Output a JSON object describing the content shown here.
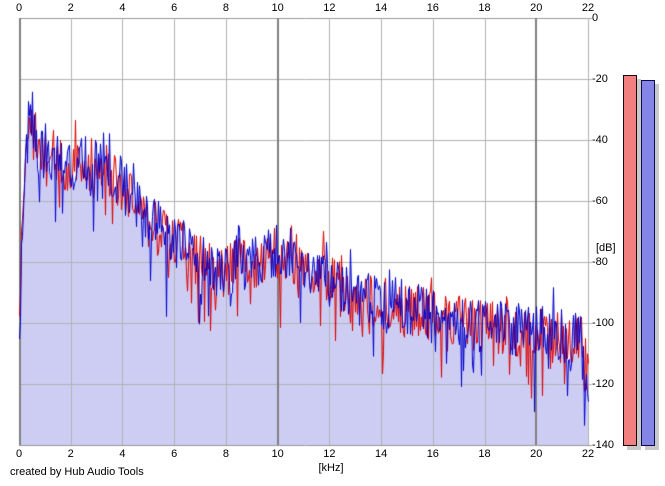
{
  "credit_label": "created by Hub Audio Tools",
  "chart_data": {
    "type": "line",
    "title": "",
    "xlabel": "[kHz]",
    "ylabel": "[dB]",
    "xlim": [
      0,
      22
    ],
    "ylim": [
      -140,
      0
    ],
    "grid": true,
    "x_ticks": [
      0,
      2,
      4,
      6,
      8,
      10,
      12,
      14,
      16,
      18,
      20,
      22
    ],
    "y_ticks": [
      0,
      -20,
      -40,
      -60,
      -80,
      -100,
      -120,
      -140
    ],
    "x_major_gridlines": [
      0,
      10,
      20
    ],
    "gridline_colors": {
      "minor": "#b2b2b2",
      "major": "#808080",
      "border": "#9a9a9a"
    },
    "series": [
      {
        "name": "left-channel-spectrum",
        "color": "#dd0000",
        "seed": 1234567,
        "envelope_db": [
          [
            0,
            -100
          ],
          [
            0.08,
            -72
          ],
          [
            0.2,
            -52
          ],
          [
            0.35,
            -38
          ],
          [
            0.5,
            -35
          ],
          [
            0.7,
            -42
          ],
          [
            1,
            -46
          ],
          [
            1.3,
            -50
          ],
          [
            1.6,
            -46
          ],
          [
            2,
            -51
          ],
          [
            2.4,
            -45
          ],
          [
            2.8,
            -52
          ],
          [
            3.2,
            -46
          ],
          [
            3.6,
            -51
          ],
          [
            4,
            -56
          ],
          [
            4.5,
            -62
          ],
          [
            5,
            -67
          ],
          [
            5.5,
            -71
          ],
          [
            6,
            -74
          ],
          [
            6.5,
            -77
          ],
          [
            7,
            -80
          ],
          [
            7.5,
            -83
          ],
          [
            8,
            -83
          ],
          [
            8.4,
            -79
          ],
          [
            8.8,
            -82
          ],
          [
            9.2,
            -80
          ],
          [
            9.6,
            -78
          ],
          [
            10,
            -77
          ],
          [
            10.5,
            -78
          ],
          [
            11,
            -81
          ],
          [
            11.5,
            -84
          ],
          [
            12,
            -87
          ],
          [
            12.5,
            -90
          ],
          [
            13,
            -92
          ],
          [
            14,
            -94
          ],
          [
            15,
            -96
          ],
          [
            16,
            -97
          ],
          [
            17,
            -99
          ],
          [
            18,
            -101
          ],
          [
            19,
            -102
          ],
          [
            20,
            -104
          ],
          [
            21,
            -105
          ],
          [
            21.7,
            -106
          ],
          [
            22,
            -116
          ]
        ]
      },
      {
        "name": "right-channel-spectrum",
        "color": "#0000cc",
        "fill_color": "#cdcdf4",
        "seed": 987654,
        "envelope_db": [
          [
            0,
            -112
          ],
          [
            0.08,
            -70
          ],
          [
            0.2,
            -50
          ],
          [
            0.35,
            -36
          ],
          [
            0.5,
            -33
          ],
          [
            0.7,
            -43
          ],
          [
            1,
            -45
          ],
          [
            1.3,
            -49
          ],
          [
            1.6,
            -45
          ],
          [
            2,
            -50
          ],
          [
            2.4,
            -44
          ],
          [
            2.8,
            -51
          ],
          [
            3.2,
            -45
          ],
          [
            3.6,
            -50
          ],
          [
            4,
            -55
          ],
          [
            4.5,
            -61
          ],
          [
            5,
            -66
          ],
          [
            5.5,
            -70
          ],
          [
            6,
            -73
          ],
          [
            6.5,
            -76
          ],
          [
            7,
            -79
          ],
          [
            7.5,
            -82
          ],
          [
            8,
            -83
          ],
          [
            8.4,
            -80
          ],
          [
            8.8,
            -81
          ],
          [
            9.2,
            -79
          ],
          [
            9.6,
            -77
          ],
          [
            10,
            -76
          ],
          [
            10.5,
            -78
          ],
          [
            11,
            -80
          ],
          [
            11.5,
            -83
          ],
          [
            12,
            -86
          ],
          [
            12.5,
            -89
          ],
          [
            13,
            -91
          ],
          [
            14,
            -93
          ],
          [
            15,
            -95
          ],
          [
            16,
            -97
          ],
          [
            17,
            -99
          ],
          [
            18,
            -100
          ],
          [
            19,
            -102
          ],
          [
            20,
            -103
          ],
          [
            21,
            -104
          ],
          [
            21.7,
            -106
          ],
          [
            22,
            -122
          ]
        ]
      }
    ],
    "noise": {
      "amplitude_db": 9,
      "notch_probability": 0.07,
      "notch_depth_db": 14,
      "peak_probability": 0.06,
      "peak_boost_db": 7
    }
  },
  "meters": {
    "left": {
      "name": "left-level-meter",
      "color": "#f28080",
      "border": "#1a0a0a",
      "level_db": -18.7
    },
    "right": {
      "name": "right-level-meter",
      "color": "#8585e8",
      "border": "#0a0a4d",
      "level_db": -20.3
    },
    "shadow": "#c9c9c9"
  }
}
